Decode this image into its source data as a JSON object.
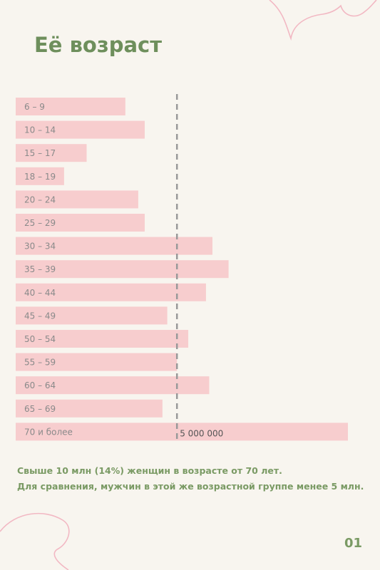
{
  "page": {
    "title": "Её возраст",
    "page_number": "01",
    "note_lines": [
      "Свыше 10 млн (14%) женщин в возрасте от 70 лет.",
      "Для сравнения, мужчин в этой же возрастной группе менее 5 млн."
    ]
  },
  "colors": {
    "background": "#f8f5ef",
    "bar": "#f7cdce",
    "title": "#6e8f5c",
    "note": "#7a9a64",
    "reference_line": "#999999",
    "decoration": "#f2b8c3"
  },
  "chart_data": {
    "type": "bar",
    "orientation": "horizontal",
    "title": "Её возраст",
    "categories": [
      "6 – 9",
      "10 – 14",
      "15 – 17",
      "18 – 19",
      "20 – 24",
      "25 – 29",
      "30 – 34",
      "35 – 39",
      "40 – 44",
      "45 – 49",
      "50 – 54",
      "55 – 59",
      "60 – 64",
      "65 – 69",
      "70 и более"
    ],
    "values": [
      3400000,
      4000000,
      2200000,
      1500000,
      3800000,
      4000000,
      6100000,
      6600000,
      5900000,
      4700000,
      5350000,
      5000000,
      6000000,
      4550000,
      10300000
    ],
    "reference_line": {
      "value": 5000000,
      "label": "5 000 000"
    },
    "xlim": [
      0,
      10300000
    ],
    "grid": false,
    "legend": "none"
  }
}
